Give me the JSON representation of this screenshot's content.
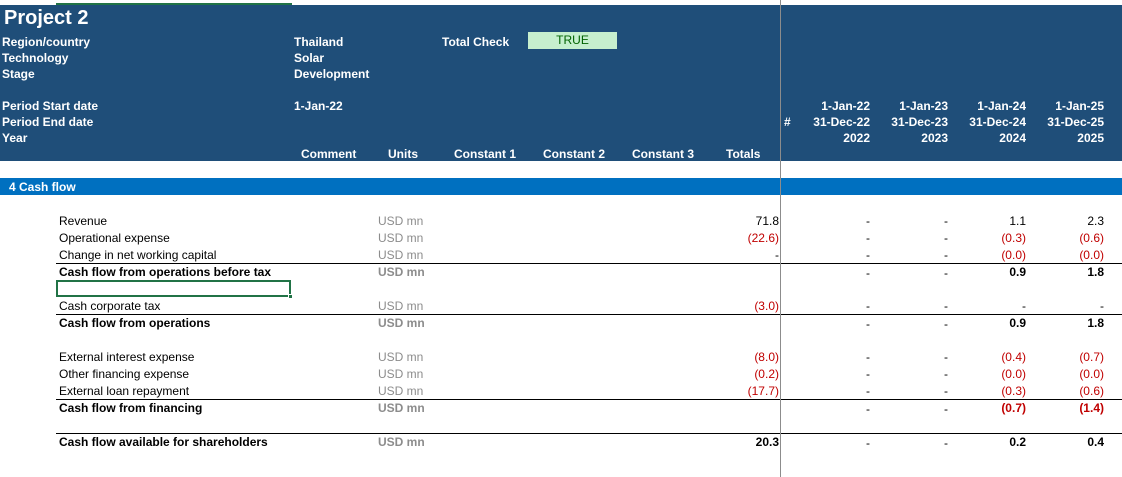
{
  "project": {
    "title": "Project 2",
    "fields": [
      {
        "label": "Region/country",
        "value": "Thailand"
      },
      {
        "label": "Technology",
        "value": "Solar"
      },
      {
        "label": "Stage",
        "value": "Development"
      }
    ],
    "total_check_label": "Total Check",
    "total_check_value": "TRUE",
    "period_start_label": "Period Start date",
    "period_start_value": "1-Jan-22",
    "period_end_label": "Period End date",
    "year_label": "Year"
  },
  "columns": {
    "comment": "Comment",
    "units": "Units",
    "constant1": "Constant 1",
    "constant2": "Constant 2",
    "constant3": "Constant 3",
    "totals": "Totals",
    "hash": "#"
  },
  "periods": [
    {
      "start": "1-Jan-22",
      "end": "31-Dec-22",
      "year": "2022"
    },
    {
      "start": "1-Jan-23",
      "end": "31-Dec-23",
      "year": "2023"
    },
    {
      "start": "1-Jan-24",
      "end": "31-Dec-24",
      "year": "2024"
    },
    {
      "start": "1-Jan-25",
      "end": "31-Dec-25",
      "year": "2025"
    }
  ],
  "section": {
    "title": "4 Cash flow"
  },
  "rows": [
    {
      "label": "Revenue",
      "units": "USD mn",
      "total": "71.8",
      "y2022": "-",
      "y2023": "-",
      "y2024": "1.1",
      "y2025": "2.3"
    },
    {
      "label": "Operational expense",
      "units": "USD mn",
      "total": "(22.6)",
      "y2022": "-",
      "y2023": "-",
      "y2024": "(0.3)",
      "y2025": "(0.6)"
    },
    {
      "label": "Change in net working capital",
      "units": "USD mn",
      "total": "-",
      "y2022": "-",
      "y2023": "-",
      "y2024": "(0.0)",
      "y2025": "(0.0)"
    },
    {
      "label": "Cash flow from operations before tax",
      "units": "USD mn",
      "total": "",
      "y2022": "-",
      "y2023": "-",
      "y2024": "0.9",
      "y2025": "1.8"
    },
    {
      "label": "Cash corporate tax",
      "units": "USD mn",
      "total": "(3.0)",
      "y2022": "-",
      "y2023": "-",
      "y2024": "-",
      "y2025": "-"
    },
    {
      "label": "Cash flow from operations",
      "units": "USD mn",
      "total": "",
      "y2022": "-",
      "y2023": "-",
      "y2024": "0.9",
      "y2025": "1.8"
    },
    {
      "label": "External interest expense",
      "units": "USD mn",
      "total": "(8.0)",
      "y2022": "-",
      "y2023": "-",
      "y2024": "(0.4)",
      "y2025": "(0.7)"
    },
    {
      "label": "Other financing expense",
      "units": "USD mn",
      "total": "(0.2)",
      "y2022": "-",
      "y2023": "-",
      "y2024": "(0.0)",
      "y2025": "(0.0)"
    },
    {
      "label": "External loan repayment",
      "units": "USD mn",
      "total": "(17.7)",
      "y2022": "-",
      "y2023": "-",
      "y2024": "(0.3)",
      "y2025": "(0.6)"
    },
    {
      "label": "Cash flow from financing",
      "units": "USD mn",
      "total": "",
      "y2022": "-",
      "y2023": "-",
      "y2024": "(0.7)",
      "y2025": "(1.4)"
    },
    {
      "label": "Cash flow available for shareholders",
      "units": "USD mn",
      "total": "20.3",
      "y2022": "-",
      "y2023": "-",
      "y2024": "0.2",
      "y2025": "0.4"
    }
  ],
  "colors": {
    "header": "#1f4e79",
    "section": "#0070c0",
    "negative": "#c00000",
    "true_badge_bg": "#c6efce",
    "selection": "#217346"
  }
}
